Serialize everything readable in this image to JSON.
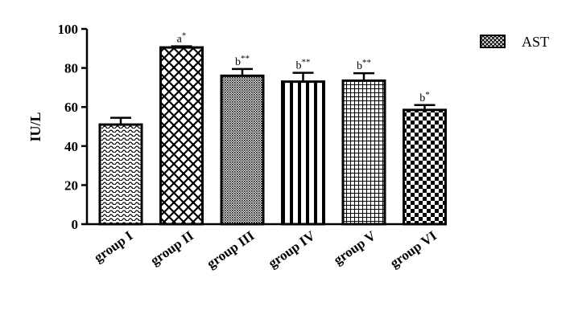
{
  "chart_data": {
    "type": "bar",
    "title": "",
    "xlabel": "",
    "ylabel": "IU/L",
    "ylim": [
      0,
      100
    ],
    "yticks": [
      0,
      20,
      40,
      60,
      80,
      100
    ],
    "grid": false,
    "legend_position": "top-right",
    "categories": [
      "group I",
      "group II",
      "group III",
      "group IV",
      "group V",
      "group VI"
    ],
    "series": [
      {
        "name": "AST",
        "values": [
          51,
          90.5,
          76,
          73,
          73.5,
          58.5
        ],
        "errors": [
          3.5,
          0.6,
          3.5,
          4.5,
          3.8,
          2.5
        ],
        "labels": [
          "",
          "a*",
          "b**",
          "b**",
          "b**",
          "b*"
        ],
        "patterns": [
          "wave",
          "diamond",
          "fine-check",
          "vertical",
          "grid",
          "checker"
        ]
      }
    ]
  }
}
